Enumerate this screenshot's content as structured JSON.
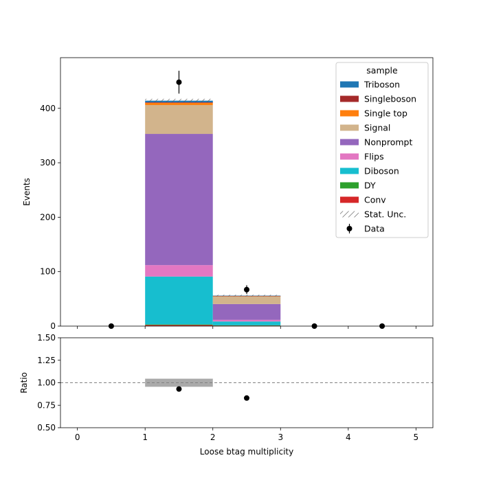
{
  "chart_data": [
    {
      "type": "bar",
      "stacked": true,
      "xlabel": "",
      "ylabel": "Events",
      "xlim": [
        -0.25,
        5.25
      ],
      "ylim": [
        0,
        493
      ],
      "yticks": [
        0,
        100,
        200,
        300,
        400
      ],
      "bin_edges": [
        0,
        1,
        2,
        3,
        4,
        5
      ],
      "series": [
        {
          "name": "Conv",
          "color": "#d62728",
          "values": [
            0,
            2,
            1,
            0,
            0
          ]
        },
        {
          "name": "DY",
          "color": "#2ca02c",
          "values": [
            0,
            1,
            0.5,
            0,
            0
          ]
        },
        {
          "name": "Diboson",
          "color": "#17becf",
          "values": [
            0,
            88,
            7,
            0,
            0
          ]
        },
        {
          "name": "Flips",
          "color": "#e377c2",
          "values": [
            0,
            21,
            3,
            0,
            0
          ]
        },
        {
          "name": "Nonprompt",
          "color": "#9467bd",
          "values": [
            0,
            241,
            29,
            0,
            0
          ]
        },
        {
          "name": "Signal",
          "color": "#d2b48c",
          "values": [
            0,
            53,
            14,
            0,
            0
          ]
        },
        {
          "name": "Single top",
          "color": "#ff7f0e",
          "values": [
            0,
            4,
            0.8,
            0,
            0
          ]
        },
        {
          "name": "Singleboson",
          "color": "#a52a2a",
          "values": [
            0,
            1,
            0.2,
            0,
            0
          ]
        },
        {
          "name": "Triboson",
          "color": "#1f77b4",
          "values": [
            0,
            3,
            0.5,
            0,
            0
          ]
        }
      ],
      "stat_unc": [
        0,
        3.5,
        1.5,
        0,
        0
      ],
      "data": {
        "name": "Data",
        "x": [
          0.5,
          1.5,
          2.5,
          3.5,
          4.5
        ],
        "y": [
          0,
          448,
          67,
          0,
          0
        ],
        "yerr": [
          0,
          21,
          8,
          0,
          0
        ]
      },
      "legend": {
        "title": "sample",
        "placement": "top-right",
        "entries": [
          "Triboson",
          "Singleboson",
          "Single top",
          "Signal",
          "Nonprompt",
          "Flips",
          "Diboson",
          "DY",
          "Conv",
          "Stat. Unc.",
          "Data"
        ]
      }
    },
    {
      "type": "scatter",
      "xlabel": "Loose btag multiplicity",
      "ylabel": "Ratio",
      "xlim": [
        -0.25,
        5.25
      ],
      "ylim": [
        0.5,
        1.5
      ],
      "xticks": [
        0,
        1,
        2,
        3,
        4,
        5
      ],
      "yticks": [
        0.5,
        0.75,
        1.0,
        1.25,
        1.5
      ],
      "ytick_labels": [
        "0.50",
        "0.75",
        "1.00",
        "1.25",
        "1.50"
      ],
      "reference_line": 1.0,
      "unc_band": {
        "x": [
          1,
          2
        ],
        "y": [
          0.955,
          1.045
        ],
        "color": "#aaaaaa"
      },
      "points": {
        "x": [
          1.5,
          2.5
        ],
        "y": [
          0.93,
          0.83
        ]
      }
    }
  ]
}
